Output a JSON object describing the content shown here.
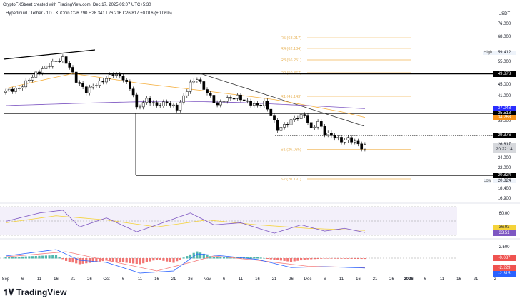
{
  "header": {
    "attribution": "CryptoFXStreet created with TradingView.com, Dec 17, 2025 09:07 UTC+5:30",
    "symbol": "Hyperliquid / Tether · 1D · KuCoin",
    "open": "O26.790",
    "high": "H28.341",
    "low": "L26.216",
    "close": "C26.817",
    "change": "+0.016 (+0.06%)"
  },
  "axis": {
    "currency": "USDT",
    "ticks": [
      "76.000",
      "68.000",
      "55.000",
      "45.000",
      "41.000",
      "33.000",
      "24.000",
      "22.000",
      "18.400",
      "16.900"
    ],
    "high_label": "High",
    "high_value": "59.412",
    "low_label": "Low",
    "low_value": "20.824",
    "badges": [
      {
        "value": "49.878",
        "color": "#000000"
      },
      {
        "value": "37.048",
        "color": "#2a2eff"
      },
      {
        "value": "35.513",
        "color": "#000000"
      },
      {
        "value": "34.263",
        "color": "#f7931a"
      },
      {
        "value": "29.376",
        "color": "#000000"
      },
      {
        "value": "20.824",
        "color": "#000000"
      }
    ],
    "price_value": "26.817",
    "countdown": "20:22:14"
  },
  "pivots": [
    {
      "label": "R5 (68.017)",
      "value": 68.017
    },
    {
      "label": "R4 (62.134)",
      "value": 62.134
    },
    {
      "label": "R3 (56.251)",
      "value": 56.251
    },
    {
      "label": "R2 (50.367)",
      "value": 50.367
    },
    {
      "label": "R1 (41.143)",
      "value": 41.143
    },
    {
      "label": "S1 (26.035)",
      "value": 26.035
    },
    {
      "label": "S2 (20.191)",
      "value": 20.191
    }
  ],
  "rsi": {
    "tick": "60.00",
    "value_yellow": "36.93",
    "value_purple": "33.51",
    "yellow": "#f5d33a",
    "purple": "#7e57c2"
  },
  "macd": {
    "tick": "2.500",
    "histogram": "-0.087",
    "signal": "-2.229",
    "macd": "-2.315"
  },
  "x_axis": [
    "Sep",
    "6",
    "11",
    "16",
    "21",
    "26",
    "Oct",
    "6",
    "11",
    "16",
    "21",
    "26",
    "Nov",
    "6",
    "11",
    "16",
    "21",
    "26",
    "Dec",
    "6",
    "11",
    "16",
    "21",
    "26",
    "2026",
    "6",
    "11",
    "16",
    "21",
    "2"
  ],
  "logo": "TradingView",
  "chart_data": {
    "type": "candlestick",
    "scale": "log",
    "ylim": [
      16.9,
      76
    ],
    "closes_keypoints": [
      [
        0,
        43
      ],
      [
        4,
        44
      ],
      [
        9,
        50
      ],
      [
        14,
        55
      ],
      [
        17,
        57
      ],
      [
        19,
        53
      ],
      [
        21,
        47
      ],
      [
        24,
        43
      ],
      [
        26,
        45
      ],
      [
        29,
        47
      ],
      [
        32,
        50
      ],
      [
        35,
        48
      ],
      [
        38,
        42
      ],
      [
        39,
        37
      ],
      [
        40,
        38
      ],
      [
        42,
        40
      ],
      [
        45,
        38
      ],
      [
        48,
        39
      ],
      [
        51,
        37
      ],
      [
        53,
        41
      ],
      [
        55,
        46
      ],
      [
        57,
        48
      ],
      [
        59,
        44
      ],
      [
        61,
        41
      ],
      [
        63,
        38
      ],
      [
        65,
        40
      ],
      [
        69,
        41
      ],
      [
        72,
        39
      ],
      [
        75,
        38
      ],
      [
        77,
        39
      ],
      [
        79,
        35
      ],
      [
        81,
        31
      ],
      [
        83,
        32
      ],
      [
        86,
        34
      ],
      [
        89,
        35
      ],
      [
        91,
        31
      ],
      [
        93,
        33
      ],
      [
        95,
        30
      ],
      [
        98,
        29
      ],
      [
        100,
        28
      ],
      [
        102,
        28.5
      ],
      [
        104,
        27.8
      ],
      [
        106,
        26.5
      ],
      [
        107,
        26.8
      ]
    ],
    "ma50_keypoints": [
      [
        0,
        44
      ],
      [
        20,
        50
      ],
      [
        40,
        46
      ],
      [
        60,
        43
      ],
      [
        80,
        40
      ],
      [
        100,
        36
      ],
      [
        107,
        34.3
      ]
    ],
    "ma200_keypoints": [
      [
        0,
        38
      ],
      [
        30,
        39
      ],
      [
        50,
        39.5
      ],
      [
        70,
        39
      ],
      [
        90,
        38
      ],
      [
        107,
        37
      ]
    ],
    "rsi_keypoints": [
      [
        0,
        50
      ],
      [
        10,
        62
      ],
      [
        17,
        66
      ],
      [
        22,
        42
      ],
      [
        30,
        55
      ],
      [
        39,
        35
      ],
      [
        45,
        45
      ],
      [
        55,
        62
      ],
      [
        62,
        45
      ],
      [
        70,
        48
      ],
      [
        80,
        33
      ],
      [
        88,
        45
      ],
      [
        95,
        36
      ],
      [
        101,
        40
      ],
      [
        107,
        34
      ]
    ],
    "rsi_ma_keypoints": [
      [
        0,
        48
      ],
      [
        15,
        58
      ],
      [
        30,
        52
      ],
      [
        45,
        42
      ],
      [
        60,
        52
      ],
      [
        75,
        45
      ],
      [
        90,
        40
      ],
      [
        107,
        37
      ]
    ],
    "macd_keypoints": [
      [
        0,
        0.5
      ],
      [
        15,
        2
      ],
      [
        22,
        -0.5
      ],
      [
        30,
        -1
      ],
      [
        40,
        -3.5
      ],
      [
        50,
        -3
      ],
      [
        57,
        1
      ],
      [
        65,
        0.5
      ],
      [
        75,
        -0.3
      ],
      [
        85,
        -2.2
      ],
      [
        95,
        -2
      ],
      [
        107,
        -2.3
      ]
    ],
    "signal_keypoints": [
      [
        0,
        0.3
      ],
      [
        18,
        1.5
      ],
      [
        30,
        -0.5
      ],
      [
        45,
        -3
      ],
      [
        55,
        -1
      ],
      [
        62,
        0.5
      ],
      [
        75,
        -0.5
      ],
      [
        90,
        -1.9
      ],
      [
        107,
        -2.2
      ]
    ]
  }
}
